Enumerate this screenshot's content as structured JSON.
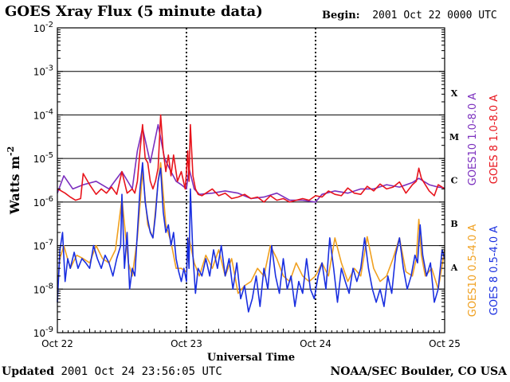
{
  "header": {
    "title": "GOES Xray Flux (5 minute data)",
    "begin_label": "Begin:",
    "begin_value": "2001 Oct 22 0000 UTC"
  },
  "footer": {
    "updated_label": "Updated",
    "updated_value": "2001 Oct 24 23:56:05 UTC",
    "credit": "NOAA/SEC Boulder, CO USA"
  },
  "colors": {
    "goes10_long": "#7b2fbe",
    "goes8_long": "#e8141c",
    "goes10_short": "#f0a020",
    "goes8_short": "#1a2fe0"
  },
  "chart_data": {
    "type": "line",
    "title": "GOES Xray Flux (5 minute data)",
    "xlabel": "Universal Time",
    "ylabel": "Watts m",
    "ylabel_sup": "-2",
    "y_scale": "log",
    "ylim": [
      1e-09,
      0.01
    ],
    "y_tick_exponents": [
      "-9",
      "-8",
      "-7",
      "-6",
      "-5",
      "-4",
      "-3",
      "-2"
    ],
    "y_tick_base": "10",
    "x_tick_labels": [
      "Oct 22",
      "Oct 23",
      "Oct 24",
      "Oct 25"
    ],
    "xlim_days": [
      0,
      3
    ],
    "flare_classes": [
      "X",
      "M",
      "C",
      "B",
      "A"
    ],
    "grid": true,
    "legend_placement": "right",
    "series": [
      {
        "name": "GOES10 1.0-8.0 A",
        "color": "#7b2fbe",
        "x": [
          0.0,
          0.05,
          0.12,
          0.2,
          0.3,
          0.4,
          0.5,
          0.58,
          0.62,
          0.66,
          0.72,
          0.78,
          0.83,
          0.88,
          0.92,
          0.96,
          1.0,
          1.02,
          1.06,
          1.1,
          1.2,
          1.3,
          1.4,
          1.5,
          1.6,
          1.7,
          1.8,
          1.9,
          2.0,
          2.05,
          2.15,
          2.25,
          2.35,
          2.45,
          2.55,
          2.65,
          2.75,
          2.8,
          2.88,
          2.95,
          3.0
        ],
        "y": [
          1.6e-06,
          4e-06,
          2e-06,
          2.5e-06,
          3e-06,
          2e-06,
          5e-06,
          2e-06,
          1.5e-05,
          5e-05,
          8e-06,
          6e-05,
          1e-05,
          5e-06,
          3e-06,
          2.5e-06,
          2e-06,
          6e-06,
          2e-06,
          1.5e-06,
          1.6e-06,
          1.8e-06,
          1.6e-06,
          1.2e-06,
          1.3e-06,
          1.6e-06,
          1.1e-06,
          1.1e-06,
          1e-06,
          1.5e-06,
          1.8e-06,
          1.6e-06,
          2e-06,
          2e-06,
          2.5e-06,
          2.2e-06,
          2.8e-06,
          3.5e-06,
          2.5e-06,
          2.2e-06,
          2.1e-06
        ]
      },
      {
        "name": "GOES 8 1.0-8.0 A",
        "color": "#e8141c",
        "x": [
          0.0,
          0.03,
          0.06,
          0.1,
          0.14,
          0.18,
          0.2,
          0.25,
          0.3,
          0.34,
          0.38,
          0.42,
          0.46,
          0.5,
          0.54,
          0.58,
          0.6,
          0.62,
          0.64,
          0.66,
          0.68,
          0.7,
          0.72,
          0.74,
          0.76,
          0.78,
          0.8,
          0.82,
          0.84,
          0.86,
          0.88,
          0.9,
          0.93,
          0.96,
          0.99,
          1.0,
          1.01,
          1.02,
          1.03,
          1.05,
          1.07,
          1.09,
          1.12,
          1.15,
          1.2,
          1.25,
          1.3,
          1.35,
          1.4,
          1.45,
          1.5,
          1.55,
          1.6,
          1.65,
          1.7,
          1.75,
          1.8,
          1.85,
          1.9,
          1.95,
          2.0,
          2.05,
          2.1,
          2.15,
          2.2,
          2.25,
          2.3,
          2.35,
          2.4,
          2.45,
          2.5,
          2.55,
          2.6,
          2.65,
          2.7,
          2.75,
          2.78,
          2.8,
          2.82,
          2.85,
          2.88,
          2.92,
          2.95,
          2.98,
          3.0
        ],
        "y": [
          2e-06,
          1.8e-06,
          1.6e-06,
          1.3e-06,
          1.1e-06,
          1.2e-06,
          4.5e-06,
          2.5e-06,
          1.5e-06,
          2e-06,
          1.6e-06,
          2.2e-06,
          1.5e-06,
          5e-06,
          1.6e-06,
          2e-06,
          1.6e-06,
          3e-06,
          1.5e-05,
          6e-05,
          1e-05,
          8e-06,
          3e-06,
          2e-06,
          3e-06,
          6e-06,
          0.0001,
          1.5e-05,
          5e-06,
          1.2e-05,
          4e-06,
          1.2e-05,
          3e-06,
          5e-06,
          2e-06,
          5e-06,
          1.5e-05,
          3e-06,
          6e-05,
          4e-06,
          2e-06,
          1.5e-06,
          1.4e-06,
          1.6e-06,
          2e-06,
          1.4e-06,
          1.6e-06,
          1.2e-06,
          1.3e-06,
          1.5e-06,
          1.2e-06,
          1.3e-06,
          1e-06,
          1.4e-06,
          1.1e-06,
          1.2e-06,
          1e-06,
          1.1e-06,
          1.2e-06,
          1.1e-06,
          1.4e-06,
          1.3e-06,
          1.8e-06,
          1.5e-06,
          1.4e-06,
          2.1e-06,
          1.6e-06,
          1.5e-06,
          2.3e-06,
          1.8e-06,
          2.6e-06,
          2e-06,
          2.2e-06,
          2.9e-06,
          1.6e-06,
          2.5e-06,
          3e-06,
          6e-06,
          3.5e-06,
          2.5e-06,
          1.8e-06,
          1.4e-06,
          2.5e-06,
          2.2e-06,
          2e-06
        ]
      },
      {
        "name": "GOES10 0.5-4.0 A",
        "color": "#f0a020",
        "x": [
          0.0,
          0.02,
          0.05,
          0.1,
          0.15,
          0.2,
          0.25,
          0.3,
          0.35,
          0.4,
          0.45,
          0.5,
          0.55,
          0.58,
          0.62,
          0.66,
          0.7,
          0.74,
          0.78,
          0.8,
          0.84,
          0.88,
          0.92,
          0.96,
          1.0,
          1.02,
          1.06,
          1.1,
          1.15,
          1.2,
          1.25,
          1.3,
          1.35,
          1.4,
          1.45,
          1.5,
          1.55,
          1.6,
          1.65,
          1.7,
          1.75,
          1.8,
          1.85,
          1.9,
          1.95,
          2.0,
          2.05,
          2.1,
          2.15,
          2.2,
          2.25,
          2.3,
          2.35,
          2.4,
          2.45,
          2.5,
          2.55,
          2.6,
          2.65,
          2.7,
          2.75,
          2.78,
          2.8,
          2.82,
          2.85,
          2.9,
          2.95,
          3.0
        ],
        "y": [
          1e-08,
          5e-08,
          1e-07,
          3e-08,
          6e-08,
          5e-08,
          4e-08,
          1e-07,
          5e-08,
          4e-08,
          8e-08,
          1.2e-06,
          4e-08,
          2e-08,
          1.5e-07,
          5e-06,
          3e-07,
          1.5e-07,
          3e-06,
          8e-06,
          3e-07,
          1.2e-07,
          3e-08,
          3e-08,
          2.5e-08,
          1.5e-07,
          4e-08,
          2e-08,
          6e-08,
          3e-08,
          8e-08,
          2e-08,
          5e-08,
          8e-09,
          1.2e-08,
          1.5e-08,
          3e-08,
          2e-08,
          1e-07,
          5e-08,
          2e-08,
          1.5e-08,
          4e-08,
          2e-08,
          1.5e-08,
          2e-08,
          4e-08,
          2e-08,
          1.5e-07,
          4e-08,
          1.5e-08,
          3e-08,
          2e-08,
          1.6e-07,
          3e-08,
          1.5e-08,
          2e-08,
          5e-08,
          1.5e-07,
          2.5e-08,
          2e-08,
          5e-08,
          4e-07,
          6e-08,
          2e-08,
          3e-08,
          1e-08,
          8e-08
        ]
      },
      {
        "name": "GOES 8 0.5-4.0 A",
        "color": "#1a2fe0",
        "x": [
          0.0,
          0.02,
          0.04,
          0.06,
          0.08,
          0.1,
          0.13,
          0.16,
          0.19,
          0.22,
          0.25,
          0.28,
          0.31,
          0.34,
          0.37,
          0.4,
          0.43,
          0.46,
          0.49,
          0.5,
          0.52,
          0.54,
          0.56,
          0.58,
          0.6,
          0.62,
          0.64,
          0.66,
          0.68,
          0.7,
          0.72,
          0.74,
          0.76,
          0.78,
          0.8,
          0.82,
          0.84,
          0.86,
          0.88,
          0.9,
          0.92,
          0.94,
          0.96,
          0.98,
          1.0,
          1.01,
          1.02,
          1.03,
          1.05,
          1.07,
          1.09,
          1.12,
          1.15,
          1.18,
          1.21,
          1.24,
          1.27,
          1.3,
          1.33,
          1.36,
          1.39,
          1.42,
          1.45,
          1.48,
          1.51,
          1.54,
          1.57,
          1.6,
          1.63,
          1.66,
          1.69,
          1.72,
          1.75,
          1.78,
          1.81,
          1.84,
          1.87,
          1.9,
          1.93,
          1.96,
          1.99,
          2.02,
          2.05,
          2.08,
          2.11,
          2.14,
          2.17,
          2.2,
          2.23,
          2.26,
          2.29,
          2.32,
          2.35,
          2.38,
          2.41,
          2.44,
          2.47,
          2.5,
          2.53,
          2.56,
          2.59,
          2.62,
          2.65,
          2.68,
          2.71,
          2.74,
          2.77,
          2.79,
          2.81,
          2.83,
          2.86,
          2.89,
          2.92,
          2.95,
          2.98,
          3.0
        ],
        "y": [
          5e-09,
          8e-08,
          2e-07,
          1.5e-08,
          5e-08,
          3e-08,
          7e-08,
          3e-08,
          5e-08,
          4e-08,
          3e-08,
          1e-07,
          5e-08,
          3e-08,
          6e-08,
          4e-08,
          2e-08,
          5e-08,
          1e-07,
          1.5e-06,
          3e-08,
          2e-07,
          1e-08,
          3e-08,
          2e-08,
          2e-07,
          2e-06,
          8e-06,
          1e-06,
          4e-07,
          2e-07,
          1.5e-07,
          5e-07,
          3e-06,
          6e-06,
          6e-07,
          2e-07,
          3e-07,
          1e-07,
          2e-07,
          5e-08,
          2.5e-08,
          1.5e-08,
          3e-08,
          1.5e-08,
          1.5e-07,
          3e-08,
          2e-06,
          6e-08,
          8e-09,
          3e-08,
          2e-08,
          5e-08,
          2e-08,
          8e-08,
          3e-08,
          1e-07,
          2e-08,
          5e-08,
          1e-08,
          4e-08,
          6e-09,
          1.2e-08,
          3e-09,
          6e-09,
          2e-08,
          4e-09,
          3e-08,
          1e-08,
          1e-07,
          2e-08,
          8e-09,
          5e-08,
          1e-08,
          2e-08,
          4e-09,
          1.5e-08,
          8e-09,
          5e-08,
          1e-08,
          6e-09,
          2e-08,
          4e-08,
          1e-08,
          1.5e-07,
          3e-08,
          5e-09,
          3e-08,
          1.5e-08,
          8e-09,
          3e-08,
          1.5e-08,
          3e-08,
          1.5e-07,
          3e-08,
          1e-08,
          5e-09,
          1e-08,
          4e-09,
          2e-08,
          8e-09,
          6e-08,
          1.5e-07,
          3e-08,
          1e-08,
          2e-08,
          6e-08,
          4e-08,
          3e-07,
          6e-08,
          2e-08,
          4e-08,
          5e-09,
          1e-08,
          8e-08,
          5e-08
        ]
      }
    ]
  }
}
